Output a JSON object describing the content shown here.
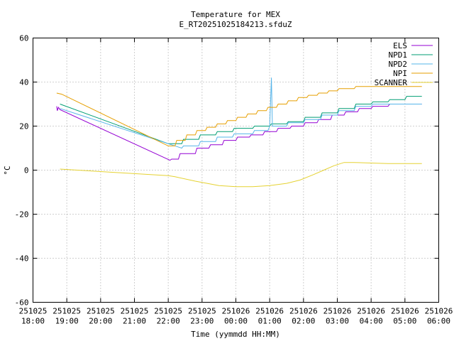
{
  "chart_data": {
    "type": "line",
    "title": "Temperature for MEX",
    "subtitle": "E_RT20251025184213.sfduZ",
    "xlabel": "Time (yymmdd HH:MM)",
    "ylabel": "°C",
    "ylim": [
      -60,
      60
    ],
    "yticks": [
      -60,
      -40,
      -20,
      0,
      20,
      40,
      60
    ],
    "xlim": [
      18,
      30
    ],
    "xticks": [
      {
        "x": 18,
        "date": "251025",
        "time": "18:00"
      },
      {
        "x": 19,
        "date": "251025",
        "time": "19:00"
      },
      {
        "x": 20,
        "date": "251025",
        "time": "20:00"
      },
      {
        "x": 21,
        "date": "251025",
        "time": "21:00"
      },
      {
        "x": 22,
        "date": "251025",
        "time": "22:00"
      },
      {
        "x": 23,
        "date": "251025",
        "time": "23:00"
      },
      {
        "x": 24,
        "date": "251026",
        "time": "00:00"
      },
      {
        "x": 25,
        "date": "251026",
        "time": "01:00"
      },
      {
        "x": 26,
        "date": "251026",
        "time": "02:00"
      },
      {
        "x": 27,
        "date": "251026",
        "time": "03:00"
      },
      {
        "x": 28,
        "date": "251026",
        "time": "04:00"
      },
      {
        "x": 29,
        "date": "251026",
        "time": "05:00"
      },
      {
        "x": 30,
        "date": "251026",
        "time": "06:00"
      }
    ],
    "grid": true,
    "legend_position": "top-right",
    "series": [
      {
        "name": "ELS",
        "color": "#9400d3",
        "points": [
          [
            18.7,
            29
          ],
          [
            18.72,
            27
          ],
          [
            18.75,
            28.5
          ],
          [
            18.8,
            27.5
          ],
          [
            22.05,
            4.5
          ],
          [
            22.1,
            5
          ],
          [
            22.3,
            5
          ],
          [
            22.35,
            7.5
          ],
          [
            22.8,
            7.5
          ],
          [
            22.85,
            10
          ],
          [
            23.2,
            10
          ],
          [
            23.25,
            11.5
          ],
          [
            23.6,
            11.5
          ],
          [
            23.65,
            13.5
          ],
          [
            24.0,
            13.5
          ],
          [
            24.05,
            15
          ],
          [
            24.4,
            15
          ],
          [
            24.45,
            16
          ],
          [
            24.8,
            16
          ],
          [
            24.85,
            17.5
          ],
          [
            25.2,
            17.5
          ],
          [
            25.25,
            19
          ],
          [
            25.6,
            19
          ],
          [
            25.65,
            20
          ],
          [
            26.0,
            20
          ],
          [
            26.05,
            21.5
          ],
          [
            26.4,
            21.5
          ],
          [
            26.45,
            23
          ],
          [
            26.8,
            23
          ],
          [
            26.85,
            25
          ],
          [
            27.2,
            25
          ],
          [
            27.25,
            26.5
          ],
          [
            27.6,
            26.5
          ],
          [
            27.65,
            28
          ],
          [
            28.0,
            28
          ],
          [
            28.05,
            29
          ],
          [
            28.5,
            29
          ],
          [
            28.55,
            30
          ],
          [
            29.5,
            30
          ]
        ]
      },
      {
        "name": "NPD1",
        "color": "#009e73",
        "points": [
          [
            18.8,
            30
          ],
          [
            22.0,
            12
          ],
          [
            22.4,
            12
          ],
          [
            22.45,
            14
          ],
          [
            22.9,
            14
          ],
          [
            22.95,
            16
          ],
          [
            23.4,
            16
          ],
          [
            23.45,
            17.5
          ],
          [
            23.9,
            17.5
          ],
          [
            23.95,
            19
          ],
          [
            24.5,
            19
          ],
          [
            24.55,
            20
          ],
          [
            25.0,
            20
          ],
          [
            25.05,
            21
          ],
          [
            25.5,
            21
          ],
          [
            25.55,
            22
          ],
          [
            26.0,
            22
          ],
          [
            26.05,
            24
          ],
          [
            26.5,
            24
          ],
          [
            26.55,
            26
          ],
          [
            27.0,
            26
          ],
          [
            27.05,
            28
          ],
          [
            27.5,
            28
          ],
          [
            27.55,
            30
          ],
          [
            28.0,
            30
          ],
          [
            28.05,
            31
          ],
          [
            28.5,
            31
          ],
          [
            28.55,
            32
          ],
          [
            29.0,
            32
          ],
          [
            29.05,
            33.5
          ],
          [
            29.5,
            33.5
          ]
        ]
      },
      {
        "name": "NPD2",
        "color": "#56b4e9",
        "points": [
          [
            18.8,
            28
          ],
          [
            22.0,
            12
          ],
          [
            22.4,
            10
          ],
          [
            22.45,
            11
          ],
          [
            22.9,
            11
          ],
          [
            22.95,
            13
          ],
          [
            23.4,
            13
          ],
          [
            23.45,
            15
          ],
          [
            23.9,
            15
          ],
          [
            23.95,
            16.5
          ],
          [
            24.5,
            16.5
          ],
          [
            24.55,
            18
          ],
          [
            24.95,
            18
          ],
          [
            25.0,
            20
          ],
          [
            25.05,
            42
          ],
          [
            25.08,
            20
          ],
          [
            25.5,
            20
          ],
          [
            25.55,
            21.5
          ],
          [
            26.0,
            21.5
          ],
          [
            26.05,
            23
          ],
          [
            26.5,
            23
          ],
          [
            26.55,
            25
          ],
          [
            27.0,
            25
          ],
          [
            27.05,
            27
          ],
          [
            27.5,
            27
          ],
          [
            27.55,
            29
          ],
          [
            28.0,
            29
          ],
          [
            28.05,
            30
          ],
          [
            29.5,
            30
          ]
        ]
      },
      {
        "name": "NPI",
        "color": "#e69f00",
        "points": [
          [
            18.7,
            35
          ],
          [
            18.85,
            34.5
          ],
          [
            22.0,
            11
          ],
          [
            22.2,
            11
          ],
          [
            22.25,
            13.5
          ],
          [
            22.5,
            13.5
          ],
          [
            22.55,
            16
          ],
          [
            22.8,
            16
          ],
          [
            22.85,
            18
          ],
          [
            23.1,
            18
          ],
          [
            23.15,
            19.5
          ],
          [
            23.4,
            19.5
          ],
          [
            23.45,
            21
          ],
          [
            23.7,
            21
          ],
          [
            23.75,
            22.5
          ],
          [
            24.0,
            22.5
          ],
          [
            24.05,
            24
          ],
          [
            24.3,
            24
          ],
          [
            24.35,
            25.5
          ],
          [
            24.6,
            25.5
          ],
          [
            24.65,
            27
          ],
          [
            24.9,
            27
          ],
          [
            24.95,
            28.5
          ],
          [
            25.2,
            28.5
          ],
          [
            25.25,
            30
          ],
          [
            25.5,
            30
          ],
          [
            25.55,
            31.5
          ],
          [
            25.8,
            31.5
          ],
          [
            25.85,
            33
          ],
          [
            26.1,
            33
          ],
          [
            26.15,
            34
          ],
          [
            26.4,
            34
          ],
          [
            26.45,
            35
          ],
          [
            26.7,
            35
          ],
          [
            26.75,
            36
          ],
          [
            27.0,
            36
          ],
          [
            27.05,
            37
          ],
          [
            27.5,
            37
          ],
          [
            27.55,
            38
          ],
          [
            29.5,
            38
          ]
        ]
      },
      {
        "name": "SCANNER",
        "color": "#e5d232",
        "points": [
          [
            18.8,
            0.5
          ],
          [
            22.0,
            -2.5
          ],
          [
            22.2,
            -3
          ],
          [
            22.8,
            -5
          ],
          [
            23.5,
            -7
          ],
          [
            24.0,
            -7.5
          ],
          [
            24.5,
            -7.5
          ],
          [
            25.0,
            -7
          ],
          [
            25.5,
            -6
          ],
          [
            25.9,
            -4.5
          ],
          [
            26.3,
            -2
          ],
          [
            26.6,
            0
          ],
          [
            26.9,
            2
          ],
          [
            27.2,
            3.5
          ],
          [
            27.5,
            3.5
          ],
          [
            28.5,
            3
          ],
          [
            29.5,
            3
          ]
        ]
      }
    ]
  }
}
